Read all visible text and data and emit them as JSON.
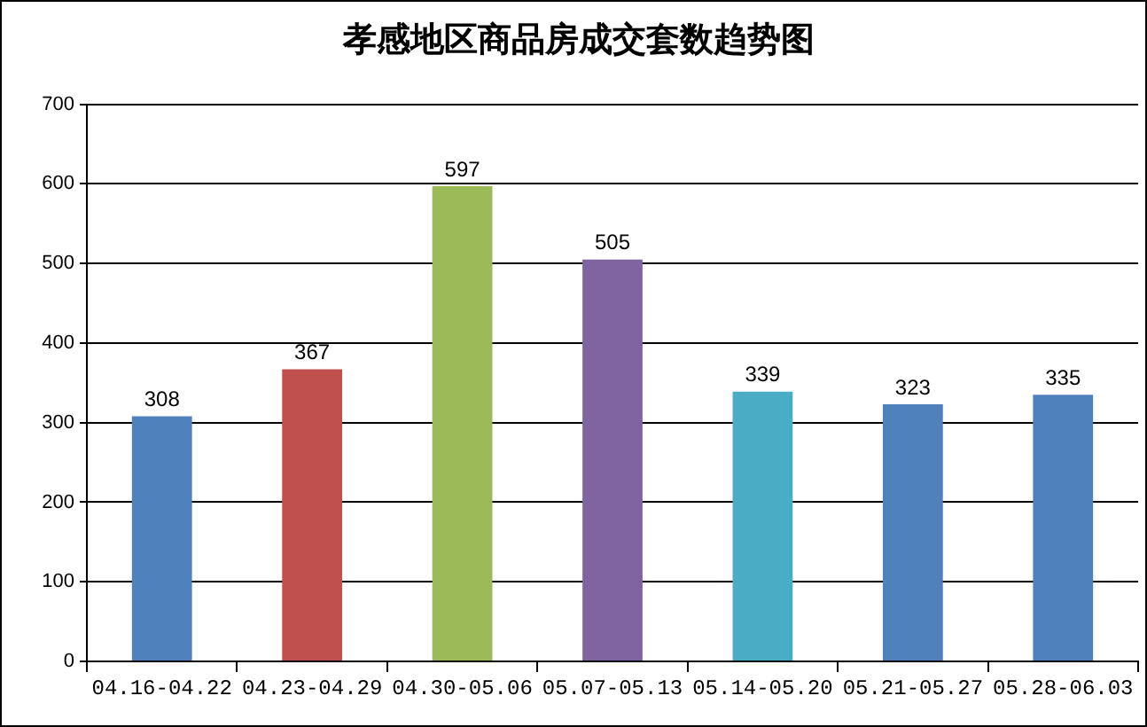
{
  "chart_data": {
    "type": "bar",
    "title": "孝感地区商品房成交套数趋势图",
    "categories": [
      "04.16-04.22",
      "04.23-04.29",
      "04.30-05.06",
      "05.07-05.13",
      "05.14-05.20",
      "05.21-05.27",
      "05.28-06.03"
    ],
    "values": [
      308,
      367,
      597,
      505,
      339,
      323,
      335
    ],
    "colors": [
      "#4f81bd",
      "#c0504d",
      "#9bbb59",
      "#8064a2",
      "#4bacc6",
      "#4f81bd",
      "#4f81bd"
    ],
    "ylim": [
      0,
      700
    ],
    "yticks": [
      0,
      100,
      200,
      300,
      400,
      500,
      600,
      700
    ],
    "grid": "y",
    "data_labels": true
  }
}
